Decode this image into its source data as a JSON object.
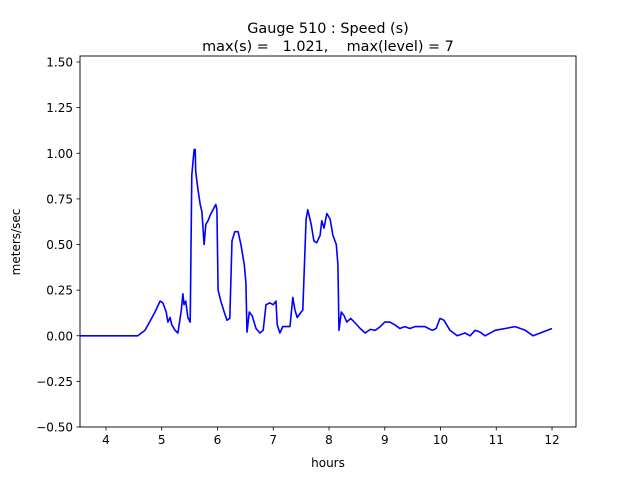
{
  "chart_data": {
    "type": "line",
    "title_line1": "Gauge 510 : Speed (s)",
    "title_line2": "max(s) =   1.021,    max(level) = 7",
    "xlabel": "hours",
    "ylabel": "meters/sec",
    "xlim": [
      3.534,
      12.43
    ],
    "ylim": [
      -0.5,
      1.533
    ],
    "xticks": [
      4,
      5,
      6,
      7,
      8,
      9,
      10,
      11,
      12
    ],
    "xtick_labels": [
      "4",
      "5",
      "6",
      "7",
      "8",
      "9",
      "10",
      "11",
      "12"
    ],
    "yticks": [
      -0.5,
      -0.25,
      0,
      0.25,
      0.5,
      0.75,
      1.0,
      1.25,
      1.5
    ],
    "ytick_labels": [
      "−0.50",
      "−0.25",
      "0.00",
      "0.25",
      "0.50",
      "0.75",
      "1.00",
      "1.25",
      "1.50"
    ],
    "grid": false,
    "series": [
      {
        "name": "speed",
        "color": "#0000ff",
        "x": [
          3.53,
          4.57,
          4.7,
          4.79,
          4.88,
          4.97,
          5.02,
          5.08,
          5.11,
          5.15,
          5.18,
          5.24,
          5.29,
          5.35,
          5.38,
          5.4,
          5.43,
          5.47,
          5.51,
          5.54,
          5.58,
          5.6,
          5.61,
          5.65,
          5.69,
          5.72,
          5.76,
          5.79,
          5.83,
          5.87,
          5.92,
          5.97,
          5.99,
          6.01,
          6.06,
          6.12,
          6.17,
          6.22,
          6.26,
          6.31,
          6.37,
          6.42,
          6.48,
          6.51,
          6.53,
          6.57,
          6.62,
          6.69,
          6.76,
          6.82,
          6.87,
          6.94,
          7.0,
          7.05,
          7.07,
          7.12,
          7.17,
          7.25,
          7.3,
          7.35,
          7.39,
          7.43,
          7.5,
          7.53,
          7.59,
          7.62,
          7.68,
          7.73,
          7.78,
          7.84,
          7.87,
          7.91,
          7.96,
          8.02,
          8.07,
          8.13,
          8.16,
          8.18,
          8.22,
          8.27,
          8.32,
          8.39,
          8.47,
          8.56,
          8.65,
          8.74,
          8.83,
          8.92,
          9.0,
          9.09,
          9.18,
          9.27,
          9.36,
          9.45,
          9.54,
          9.72,
          9.85,
          9.92,
          9.99,
          10.06,
          10.17,
          10.3,
          10.44,
          10.53,
          10.62,
          10.71,
          10.8,
          10.98,
          11.16,
          11.34,
          11.52,
          11.66,
          11.79,
          12.0
        ],
        "y": [
          0,
          0,
          0.03,
          0.08,
          0.13,
          0.19,
          0.18,
          0.13,
          0.075,
          0.1,
          0.06,
          0.03,
          0.015,
          0.14,
          0.23,
          0.17,
          0.19,
          0.1,
          0.075,
          0.88,
          1.02,
          1.021,
          0.9,
          0.8,
          0.72,
          0.68,
          0.5,
          0.61,
          0.63,
          0.66,
          0.69,
          0.72,
          0.69,
          0.25,
          0.19,
          0.13,
          0.085,
          0.095,
          0.52,
          0.57,
          0.57,
          0.5,
          0.39,
          0.29,
          0.02,
          0.13,
          0.11,
          0.04,
          0.015,
          0.03,
          0.17,
          0.18,
          0.17,
          0.19,
          0.06,
          0.015,
          0.05,
          0.05,
          0.05,
          0.21,
          0.14,
          0.1,
          0.13,
          0.14,
          0.64,
          0.69,
          0.61,
          0.52,
          0.51,
          0.55,
          0.63,
          0.59,
          0.67,
          0.64,
          0.55,
          0.5,
          0.39,
          0.03,
          0.13,
          0.11,
          0.075,
          0.095,
          0.07,
          0.04,
          0.015,
          0.035,
          0.03,
          0.05,
          0.075,
          0.075,
          0.06,
          0.04,
          0.05,
          0.04,
          0.05,
          0.05,
          0.03,
          0.04,
          0.095,
          0.085,
          0.03,
          0,
          0.015,
          0,
          0.03,
          0.02,
          0,
          0.03,
          0.04,
          0.05,
          0.03,
          0,
          0.015,
          0.04
        ]
      }
    ]
  }
}
